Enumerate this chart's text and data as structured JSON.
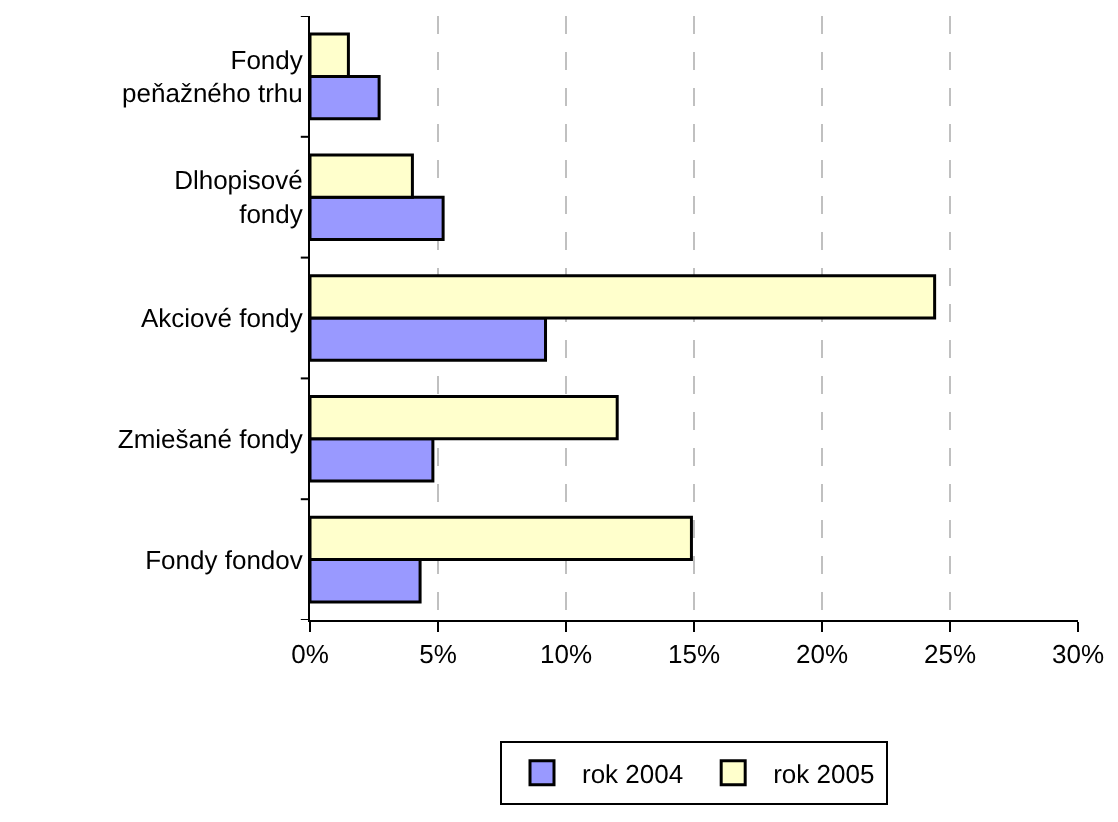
{
  "chart_data": {
    "type": "bar",
    "orientation": "horizontal",
    "categories": [
      "Fondy peňažného trhu",
      "Dlhopisové fondy",
      "Akciové fondy",
      "Zmiešané fondy",
      "Fondy fondov"
    ],
    "series": [
      {
        "name": "rok 2004",
        "color": "#9999ff",
        "values": [
          2.7,
          5.2,
          9.2,
          4.8,
          4.3
        ]
      },
      {
        "name": "rok 2005",
        "color": "#ffffcc",
        "values": [
          1.5,
          4.0,
          24.4,
          12.0,
          14.9
        ]
      }
    ],
    "xlim": [
      0,
      30
    ],
    "xticks": [
      {
        "value": 0,
        "label": "0%"
      },
      {
        "value": 5,
        "label": "5%"
      },
      {
        "value": 10,
        "label": "10%"
      },
      {
        "value": 15,
        "label": "15%"
      },
      {
        "value": 20,
        "label": "20%"
      },
      {
        "value": 25,
        "label": "25%"
      },
      {
        "value": 30,
        "label": "30%"
      }
    ],
    "grid": "x",
    "legend": "bottom"
  }
}
